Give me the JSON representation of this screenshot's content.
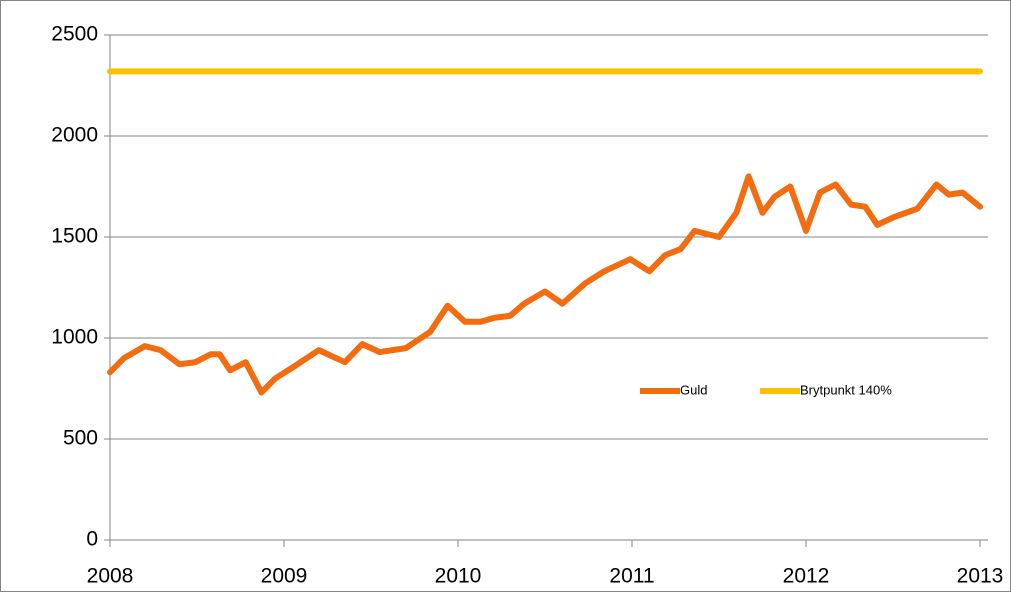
{
  "chart_data": {
    "type": "line",
    "xlim": [
      2008,
      2013
    ],
    "xticks": [
      2008,
      2009,
      2010,
      2011,
      2012,
      2013
    ],
    "ylim": [
      0,
      2500
    ],
    "yticks": [
      0,
      500,
      1000,
      1500,
      2000,
      2500
    ],
    "grid": true,
    "legend": "inside",
    "series": [
      {
        "name": "Guld",
        "color": "#f36c0f",
        "x": [
          2008.0,
          2008.08,
          2008.2,
          2008.29,
          2008.4,
          2008.49,
          2008.58,
          2008.63,
          2008.69,
          2008.78,
          2008.87,
          2008.95,
          2009.06,
          2009.2,
          2009.35,
          2009.45,
          2009.55,
          2009.7,
          2009.84,
          2009.94,
          2010.04,
          2010.13,
          2010.21,
          2010.3,
          2010.38,
          2010.5,
          2010.6,
          2010.73,
          2010.84,
          2010.99,
          2011.1,
          2011.19,
          2011.28,
          2011.36,
          2011.5,
          2011.6,
          2011.67,
          2011.75,
          2011.82,
          2011.91,
          2012.0,
          2012.08,
          2012.17,
          2012.26,
          2012.34,
          2012.41,
          2012.51,
          2012.64,
          2012.75,
          2012.82,
          2012.9,
          2013.0
        ],
        "values": [
          830,
          900,
          960,
          940,
          870,
          880,
          920,
          920,
          840,
          880,
          730,
          800,
          860,
          940,
          880,
          970,
          930,
          950,
          1030,
          1160,
          1080,
          1080,
          1100,
          1110,
          1170,
          1230,
          1170,
          1270,
          1330,
          1390,
          1330,
          1410,
          1440,
          1530,
          1500,
          1620,
          1800,
          1620,
          1700,
          1750,
          1530,
          1720,
          1760,
          1660,
          1650,
          1560,
          1600,
          1640,
          1760,
          1710,
          1720,
          1650
        ]
      },
      {
        "name": "Brytpunkt 140%",
        "color": "#ffc000",
        "x": [
          2008.0,
          2013.0
        ],
        "values": [
          2320,
          2320
        ]
      }
    ]
  }
}
